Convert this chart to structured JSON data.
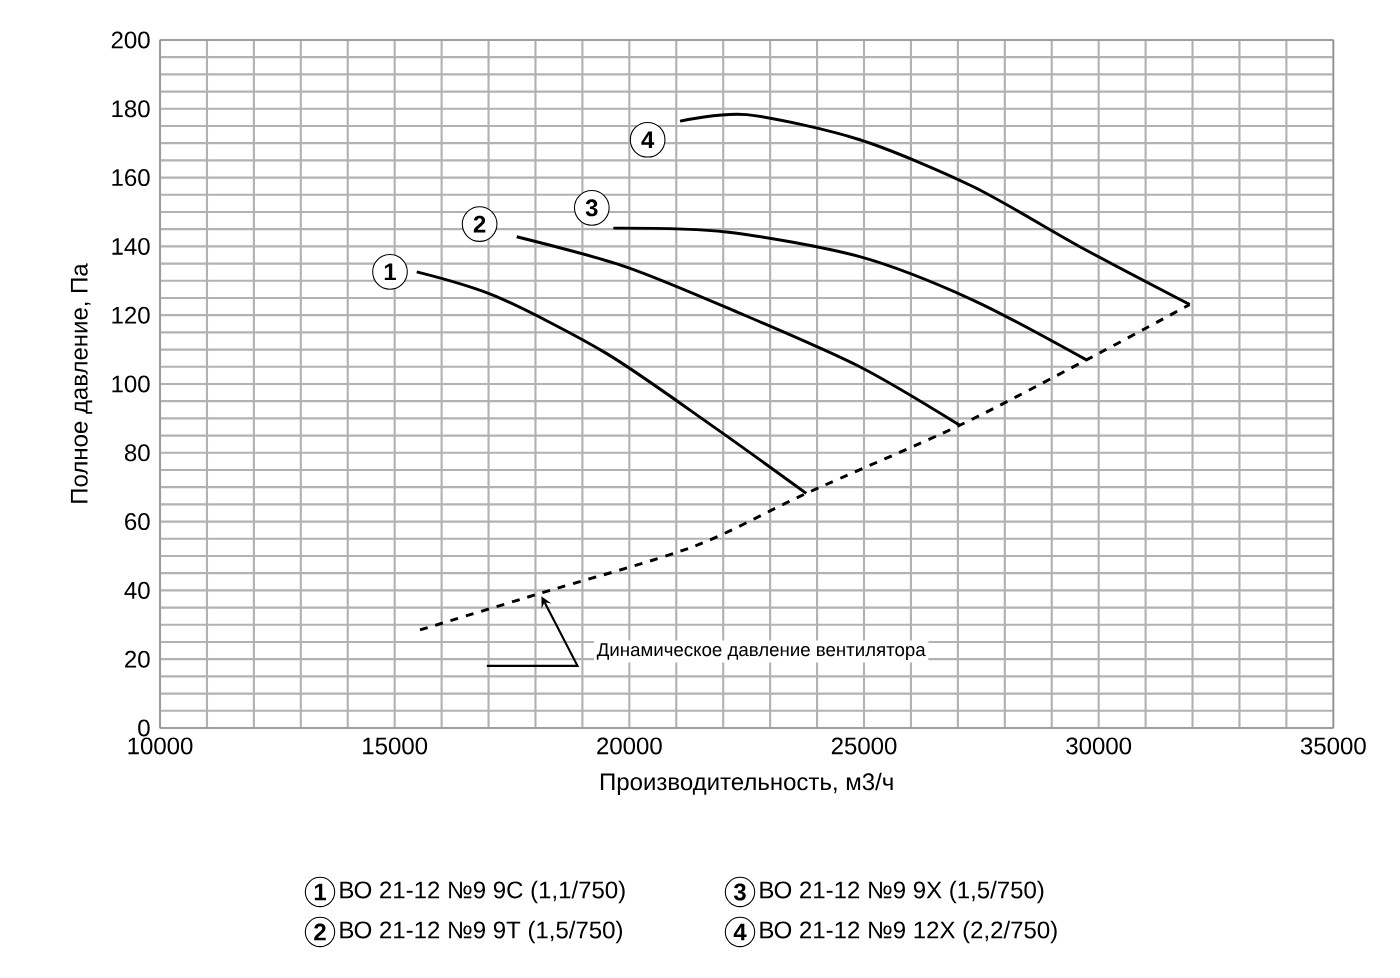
{
  "chart_data": {
    "type": "line",
    "xlabel": "Производительность, м3/ч",
    "ylabel": "Полное давление, Па",
    "xlim": [
      10000,
      35000
    ],
    "xticks": [
      10000,
      15000,
      20000,
      25000,
      30000,
      35000
    ],
    "ylim": [
      0,
      200
    ],
    "yticks": [
      0,
      20,
      40,
      60,
      80,
      100,
      120,
      140,
      160,
      180,
      200
    ],
    "grid": true,
    "legend": "bottom",
    "line_style": "solid",
    "marker": "none",
    "series": [
      {
        "name": "ВО 21-12 №9 9С (1,1/750)",
        "color": "#000000",
        "x": [
          15470,
          17170,
          19510,
          21790,
          23770
        ],
        "values": [
          132.6,
          125.4,
          108.9,
          87.6,
          68.2
        ]
      },
      {
        "name": "ВО 21-12 №9 9Т (1,5/750)",
        "color": "#000000",
        "x": [
          17600,
          19940,
          22350,
          24910,
          27040
        ],
        "values": [
          142.8,
          134,
          120.6,
          105,
          88
        ]
      },
      {
        "name": "ВО 21-12 №9 9Х (1,5/750)",
        "color": "#000000",
        "x": [
          19660,
          22070,
          24910,
          27320,
          29740
        ],
        "values": [
          145.3,
          144.2,
          137,
          124.4,
          107
        ]
      },
      {
        "name": "ВО 21-12 №9 12Х (2,2/750)",
        "color": "#000000",
        "x": [
          21080,
          22500,
          24910,
          27320,
          29600,
          31940
        ],
        "values": [
          176.4,
          178.3,
          171,
          157.4,
          139.9,
          123.1
        ]
      },
      {
        "color": "#000000",
        "line_style": "dashed",
        "x": [
          15540,
          18090,
          21360,
          23770,
          27040,
          29740,
          31940
        ],
        "values": [
          28.5,
          39.1,
          52.7,
          68.2,
          88,
          107,
          123.1
        ]
      }
    ],
    "annotations": [
      {
        "text": "1",
        "x": 14900,
        "y": 132.6
      },
      {
        "text": "2",
        "x": 16810,
        "y": 146.5
      },
      {
        "text": "3",
        "x": 19200,
        "y": 151.2
      },
      {
        "text": "4",
        "x": 20390,
        "y": 171
      },
      {
        "text": "Динамическое давление вентилятора",
        "x": 18100,
        "y": 39
      }
    ]
  }
}
